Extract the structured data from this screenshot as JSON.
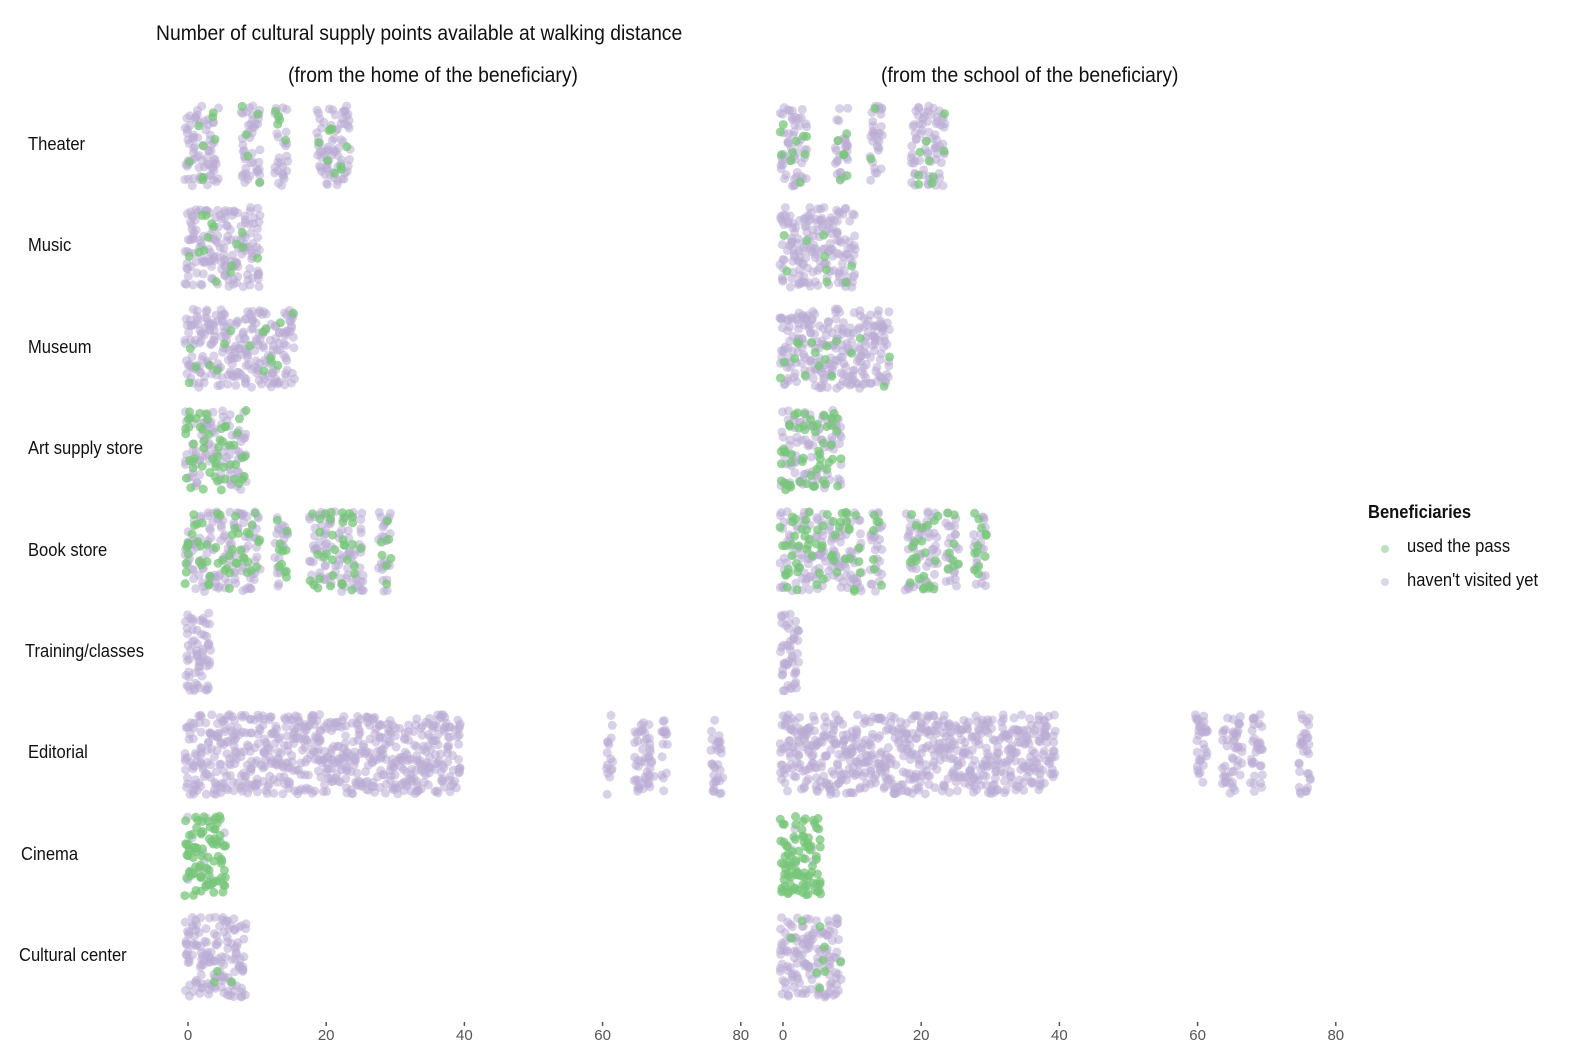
{
  "chart_data": {
    "type": "scatter",
    "title": "Number of cultural supply points available at walking distance",
    "categories": [
      "Theater",
      "Music",
      "Museum",
      "Art supply store",
      "Book store",
      "Training/classes",
      "Editorial",
      "Cinema",
      "Cultural center"
    ],
    "xlim": [
      0,
      80
    ],
    "xticks": [
      "0",
      "20",
      "40",
      "60",
      "80"
    ],
    "grid": false,
    "legend": {
      "title": "Beneficiaries",
      "placement": "right",
      "entries": [
        {
          "label": "used the pass",
          "color": "#77c57a"
        },
        {
          "label": "haven't visited yet",
          "color": "#b9acd3"
        }
      ]
    },
    "panels": [
      {
        "subtitle": "(from the home of the beneficiary)",
        "series": {
          "Theater": {
            "x_ranges": [
              [
                0,
                4
              ],
              [
                8,
                10
              ],
              [
                13,
                14
              ],
              [
                19,
                20
              ],
              [
                21,
                23
              ]
            ],
            "share_used_the_pass": 0.1
          },
          "Music": {
            "x_ranges": [
              [
                0,
                7
              ],
              [
                8,
                10
              ]
            ],
            "share_used_the_pass": 0.05
          },
          "Museum": {
            "x_ranges": [
              [
                0,
                3
              ],
              [
                4,
                9
              ],
              [
                10,
                13
              ],
              [
                14,
                15
              ]
            ],
            "share_used_the_pass": 0.06
          },
          "Art supply store": {
            "x_ranges": [
              [
                0,
                4
              ],
              [
                5,
                8
              ]
            ],
            "share_used_the_pass": 0.4
          },
          "Book store": {
            "x_ranges": [
              [
                0,
                10
              ],
              [
                13,
                14
              ],
              [
                18,
                22
              ],
              [
                23,
                25
              ],
              [
                28,
                29
              ]
            ],
            "share_used_the_pass": 0.3
          },
          "Training/classes": {
            "x_ranges": [
              [
                0,
                3
              ]
            ],
            "share_used_the_pass": 0
          },
          "Editorial": {
            "x_ranges": [
              [
                0,
                39
              ],
              [
                61,
                61
              ],
              [
                65,
                67
              ],
              [
                69,
                69
              ],
              [
                76,
                77
              ]
            ],
            "share_used_the_pass": 0
          },
          "Cinema": {
            "x_ranges": [
              [
                0,
                5
              ]
            ],
            "share_used_the_pass": 0.9
          },
          "Cultural center": {
            "x_ranges": [
              [
                0,
                5
              ],
              [
                6,
                8
              ]
            ],
            "share_used_the_pass": 0.05
          }
        }
      },
      {
        "subtitle": "(from the school of the beneficiary)",
        "series": {
          "Theater": {
            "x_ranges": [
              [
                0,
                3
              ],
              [
                8,
                9
              ],
              [
                13,
                14
              ],
              [
                19,
                20
              ],
              [
                21,
                23
              ]
            ],
            "share_used_the_pass": 0.1
          },
          "Music": {
            "x_ranges": [
              [
                0,
                6
              ],
              [
                7,
                10
              ]
            ],
            "share_used_the_pass": 0.05
          },
          "Museum": {
            "x_ranges": [
              [
                0,
                13
              ],
              [
                14,
                15
              ]
            ],
            "share_used_the_pass": 0.06
          },
          "Art supply store": {
            "x_ranges": [
              [
                0,
                4
              ],
              [
                5,
                6
              ],
              [
                7,
                8
              ]
            ],
            "share_used_the_pass": 0.4
          },
          "Book store": {
            "x_ranges": [
              [
                0,
                11
              ],
              [
                13,
                14
              ],
              [
                18,
                19
              ],
              [
                20,
                22
              ],
              [
                24,
                25
              ],
              [
                28,
                29
              ]
            ],
            "share_used_the_pass": 0.3
          },
          "Training/classes": {
            "x_ranges": [
              [
                0,
                2
              ]
            ],
            "share_used_the_pass": 0
          },
          "Editorial": {
            "x_ranges": [
              [
                0,
                39
              ],
              [
                60,
                61
              ],
              [
                64,
                66
              ],
              [
                68,
                69
              ],
              [
                75,
                76
              ]
            ],
            "share_used_the_pass": 0
          },
          "Cinema": {
            "x_ranges": [
              [
                0,
                5
              ]
            ],
            "share_used_the_pass": 0.95
          },
          "Cultural center": {
            "x_ranges": [
              [
                0,
                5
              ],
              [
                6,
                8
              ]
            ],
            "share_used_the_pass": 0.05
          }
        }
      }
    ]
  }
}
